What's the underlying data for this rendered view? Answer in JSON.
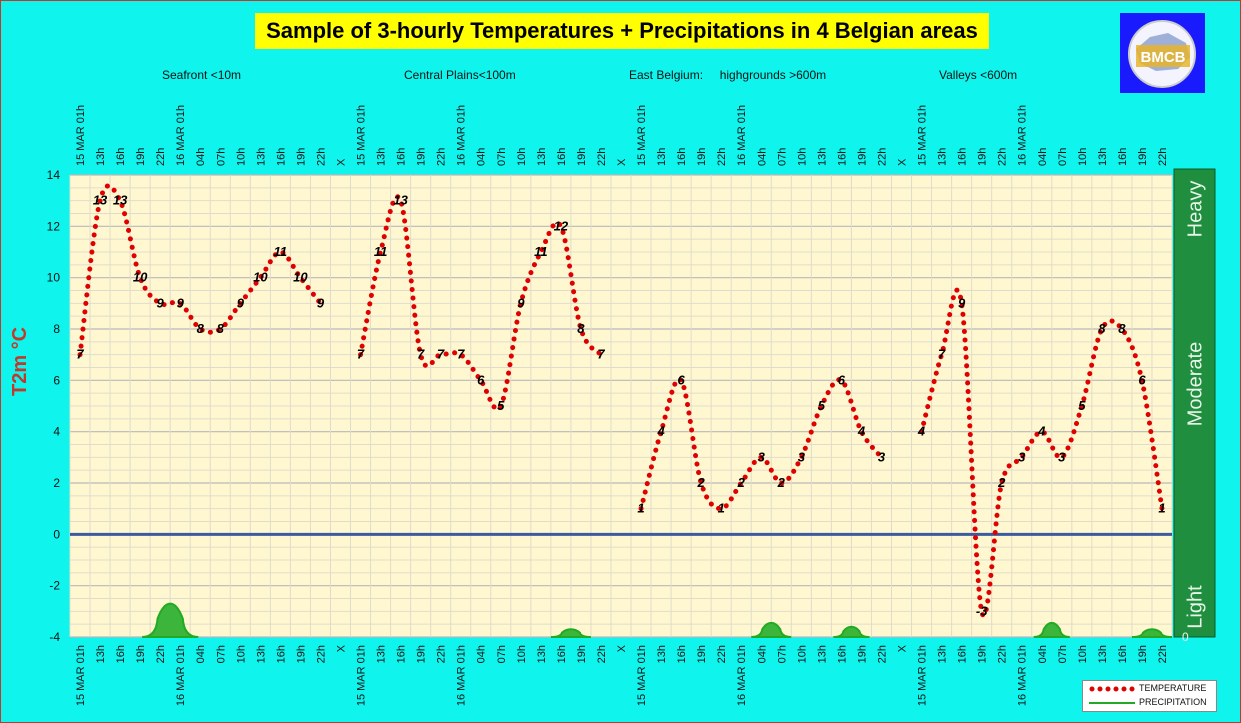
{
  "title": "Sample of 3-hourly Temperatures + Precipitations in 4 Belgian areas",
  "logo_text": "BMCB",
  "colors": {
    "background": "#0ff5ee",
    "plot": "#fff7d0",
    "temperature": "#e00000",
    "precipitation": "#22aa22",
    "scale": "#1f8f3f"
  },
  "chart_data": {
    "type": "line",
    "ylabel": "T2m °C",
    "ylim": [
      -4,
      14
    ],
    "yticks": [
      14,
      12,
      10,
      8,
      6,
      4,
      2,
      0,
      -2,
      -4
    ],
    "grid": true,
    "legend_position": "bottom-right",
    "categories": [
      "15 MAR 01h",
      "13h",
      "16h",
      "19h",
      "22h",
      "16 MAR 01h",
      "04h",
      "07h",
      "10h",
      "13h",
      "16h",
      "19h",
      "22h",
      "X",
      "15 MAR 01h",
      "13h",
      "16h",
      "19h",
      "22h",
      "16 MAR 01h",
      "04h",
      "07h",
      "10h",
      "13h",
      "16h",
      "19h",
      "22h",
      "X",
      "15 MAR 01h",
      "13h",
      "16h",
      "19h",
      "22h",
      "16 MAR 01h",
      "04h",
      "07h",
      "10h",
      "13h",
      "16h",
      "19h",
      "22h",
      "X",
      "15 MAR 01h",
      "13h",
      "16h",
      "19h",
      "22h",
      "16 MAR 01h",
      "04h",
      "07h",
      "10h",
      "13h",
      "16h",
      "19h",
      "22h"
    ],
    "areas": [
      {
        "label": "Seafront <10m"
      },
      {
        "label": "Central Plains<100m"
      },
      {
        "label": "East Belgium:     highgrounds >600m"
      },
      {
        "label": "Valleys <600m"
      }
    ],
    "series": [
      {
        "name": "TEMPERATURE",
        "values": [
          7,
          13,
          13,
          10,
          9,
          9,
          8,
          8,
          9,
          10,
          11,
          10,
          9,
          null,
          7,
          11,
          13,
          7,
          7,
          7,
          6,
          5,
          9,
          11,
          12,
          8,
          7,
          null,
          1,
          4,
          6,
          2,
          1,
          2,
          3,
          2,
          3,
          5,
          6,
          4,
          3,
          null,
          4,
          7,
          9,
          -3,
          2,
          3,
          4,
          3,
          5,
          8,
          8,
          6,
          1
        ]
      },
      {
        "name": "PRECIPITATION",
        "bumps": [
          {
            "center": 4.5,
            "height": 1.3,
            "width": 1.4
          },
          {
            "center": 24.5,
            "height": 0.3,
            "width": 1.0
          },
          {
            "center": 34.5,
            "height": 0.55,
            "width": 1.0
          },
          {
            "center": 38.5,
            "height": 0.4,
            "width": 0.9
          },
          {
            "center": 48.5,
            "height": 0.55,
            "width": 0.9
          },
          {
            "center": 53.5,
            "height": 0.3,
            "width": 1.0
          }
        ]
      }
    ],
    "precip_scale": {
      "labels": [
        "Heavy",
        "Moderate",
        "Light"
      ],
      "zero": "0"
    }
  }
}
